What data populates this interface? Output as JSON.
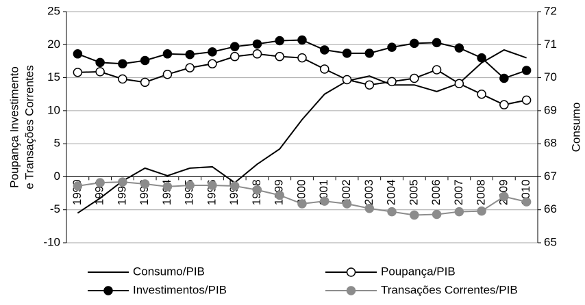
{
  "chart_data": {
    "type": "line",
    "y_label": [
      "Poupança Investimento",
      "e Transações Correntes"
    ],
    "y2_label": "Consumo",
    "categories": [
      "1990",
      "1991",
      "1992",
      "1993",
      "1994",
      "1995",
      "1996",
      "1997",
      "1998",
      "1999",
      "2000",
      "2001",
      "2002",
      "2003",
      "2004",
      "2005",
      "2006",
      "2007",
      "2008",
      "2009",
      "2010"
    ],
    "ylim": [
      -10,
      25
    ],
    "yticks": [
      -10,
      -5,
      0,
      5,
      10,
      15,
      20,
      25
    ],
    "y2lim": [
      65,
      72
    ],
    "y2ticks": [
      65,
      66,
      67,
      68,
      69,
      70,
      71,
      72
    ],
    "grid": true,
    "series": [
      {
        "name": "Consumo/PIB",
        "color": "#000000",
        "marker": "none",
        "axis": "y2",
        "values": [
          65.9,
          66.35,
          66.87,
          67.26,
          67.03,
          67.26,
          67.3,
          66.82,
          67.38,
          67.84,
          68.73,
          69.5,
          69.9,
          70.05,
          69.78,
          69.78,
          69.58,
          69.83,
          70.45,
          70.84,
          70.6
        ]
      },
      {
        "name": " Poupança/PIB",
        "color": "#000000",
        "marker": "open",
        "values": [
          15.8,
          15.9,
          14.8,
          14.3,
          15.5,
          16.5,
          17.1,
          18.2,
          18.6,
          18.2,
          18.0,
          16.3,
          14.7,
          13.9,
          14.4,
          14.9,
          16.2,
          14.1,
          12.5,
          10.9,
          11.6
        ]
      },
      {
        "name": "Investimentos/PIB",
        "color": "#000000",
        "marker": "filled",
        "values": [
          18.6,
          17.3,
          17.1,
          17.6,
          18.6,
          18.5,
          18.9,
          19.7,
          20.1,
          20.6,
          20.7,
          19.2,
          18.7,
          18.7,
          19.6,
          20.2,
          20.3,
          19.5,
          18.0,
          14.9,
          16.1
        ]
      },
      {
        "name": "Transações Correntes/PIB",
        "color": "#8c8c8c",
        "marker": "filled",
        "values": [
          -1.4,
          -0.9,
          -0.8,
          -1.1,
          -1.5,
          -1.3,
          -1.3,
          -1.4,
          -2.0,
          -2.8,
          -4.1,
          -3.7,
          -4.1,
          -4.8,
          -5.3,
          -5.8,
          -5.7,
          -5.3,
          -5.2,
          -3.0,
          -3.8
        ]
      }
    ]
  }
}
